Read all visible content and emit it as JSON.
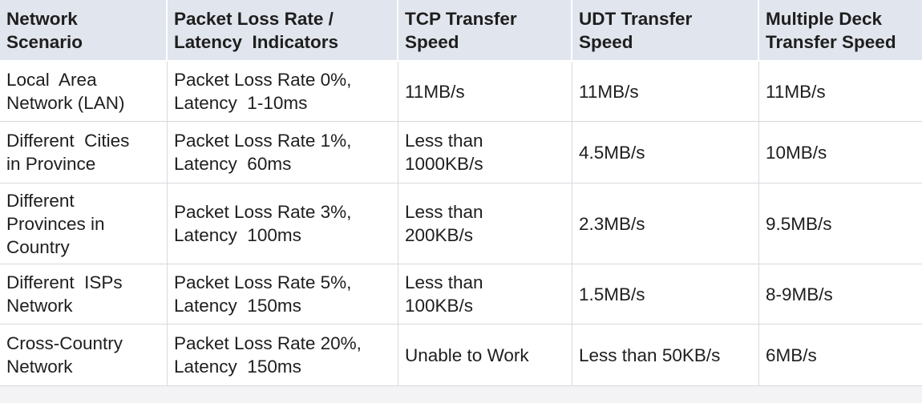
{
  "table": {
    "header": [
      [
        "Network",
        "Scenario"
      ],
      [
        "Packet Loss Rate /",
        "Latency  Indicators"
      ],
      [
        "TCP Transfer",
        "Speed"
      ],
      [
        "UDT Transfer",
        "Speed"
      ],
      [
        "Multiple Deck",
        "Transfer Speed"
      ]
    ],
    "rows": [
      [
        [
          "Local  Area",
          "Network (LAN)"
        ],
        [
          "Packet Loss Rate 0%,",
          "Latency  1-10ms"
        ],
        [
          "11MB/s"
        ],
        [
          "11MB/s"
        ],
        [
          "11MB/s"
        ]
      ],
      [
        [
          "Different  Cities",
          "in Province"
        ],
        [
          "Packet Loss Rate 1%,",
          "Latency  60ms"
        ],
        [
          "Less than",
          "1000KB/s"
        ],
        [
          "4.5MB/s"
        ],
        [
          "10MB/s"
        ]
      ],
      [
        [
          "Different",
          "Provinces in",
          "Country"
        ],
        [
          "Packet Loss Rate 3%,",
          "Latency  100ms"
        ],
        [
          "Less than",
          "200KB/s"
        ],
        [
          "2.3MB/s"
        ],
        [
          "9.5MB/s"
        ]
      ],
      [
        [
          "Different  ISPs",
          "Network"
        ],
        [
          "Packet Loss Rate 5%,",
          "Latency  150ms"
        ],
        [
          "Less than",
          "100KB/s"
        ],
        [
          "1.5MB/s"
        ],
        [
          "8-9MB/s"
        ]
      ],
      [
        [
          "Cross-Country",
          "Network"
        ],
        [
          "Packet Loss Rate 20%,",
          "Latency  150ms"
        ],
        [
          "Unable to Work"
        ],
        [
          "Less than 50KB/s"
        ],
        [
          "6MB/s"
        ]
      ]
    ]
  }
}
